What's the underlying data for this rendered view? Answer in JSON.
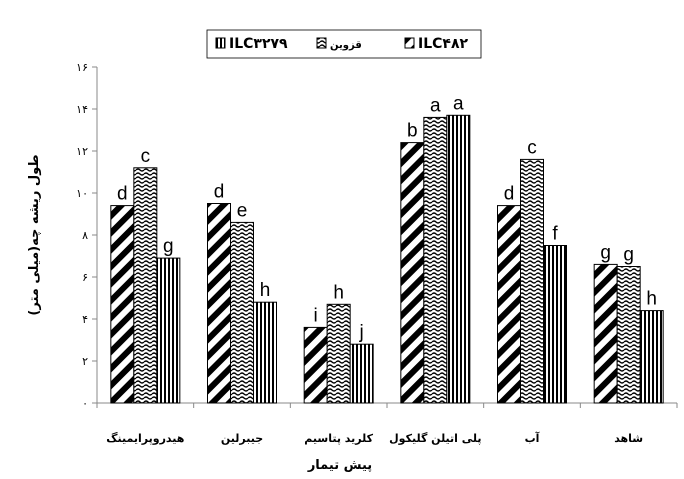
{
  "chart_data": {
    "type": "bar",
    "xlabel": "پیش تیمار",
    "ylabel": "طول ریشه چه(میلی متر)",
    "ylim": [
      0,
      16
    ],
    "yticks": [
      "۰",
      "۲",
      "۴",
      "۶",
      "۸",
      "۱۰",
      "۱۲",
      "۱۴",
      "۱۶"
    ],
    "grid": false,
    "legend_position": "top-center",
    "categories": [
      "هیدروپرایمینگ",
      "جیبرلین",
      "کلرید پتاسیم",
      "پلی اتیلن گلیکول",
      "آب",
      "شاهد"
    ],
    "series": [
      {
        "name": "ILC۴۸۲",
        "pattern": "diagonal",
        "values": [
          9.4,
          9.5,
          3.6,
          12.4,
          9.4,
          6.6
        ],
        "labels": [
          "d",
          "d",
          "i",
          "b",
          "d",
          "g"
        ]
      },
      {
        "name": "قزوین",
        "pattern": "wave",
        "values": [
          11.2,
          8.6,
          4.7,
          13.6,
          11.6,
          6.5
        ],
        "labels": [
          "c",
          "e",
          "h",
          "a",
          "c",
          "g"
        ]
      },
      {
        "name": "ILC۳۲۷۹",
        "pattern": "vertical",
        "values": [
          6.9,
          4.8,
          2.8,
          13.7,
          7.5,
          4.4
        ],
        "labels": [
          "g",
          "h",
          "j",
          "a",
          "f",
          "h"
        ]
      }
    ]
  },
  "legend_order": [
    2,
    1,
    0
  ]
}
